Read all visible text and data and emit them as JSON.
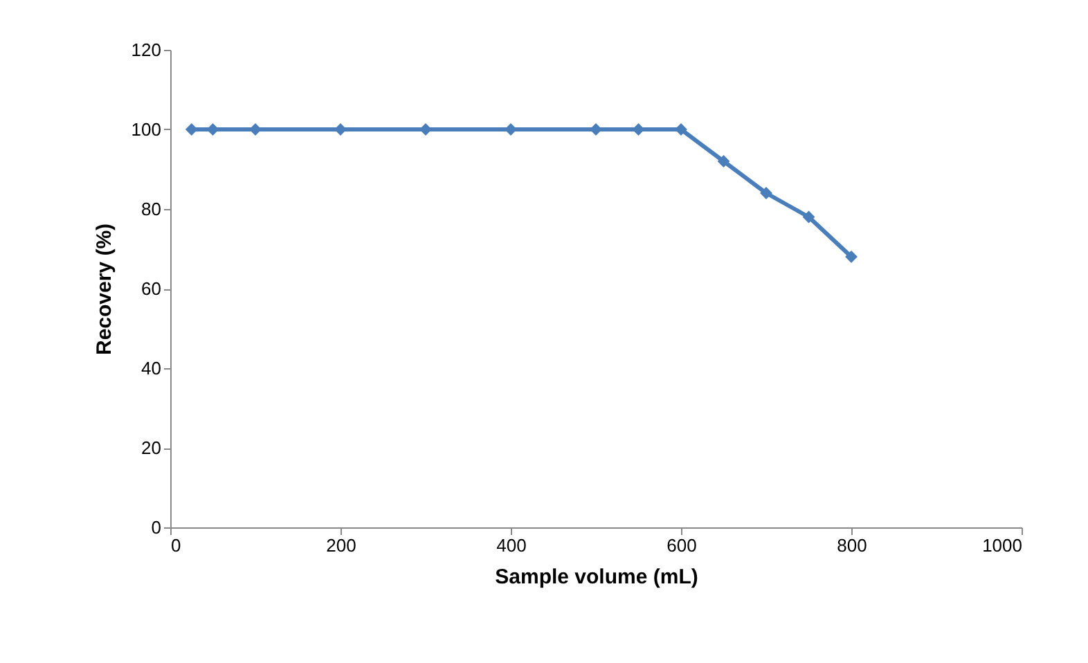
{
  "chart_data": {
    "type": "line",
    "xlabel": "Sample volume (mL)",
    "ylabel": "Recovery (%)",
    "x": [
      25,
      50,
      100,
      200,
      300,
      400,
      500,
      550,
      600,
      650,
      700,
      750,
      800
    ],
    "series": [
      {
        "color": "#4a7ebb",
        "values": [
          100,
          100,
          100,
          100,
          100,
          100,
          100,
          100,
          100,
          92,
          84,
          78,
          68
        ]
      }
    ],
    "xlim": [
      0,
      1000
    ],
    "xticks": [
      0,
      200,
      400,
      600,
      800,
      1000
    ],
    "ylim": [
      0,
      120
    ],
    "yticks": [
      0,
      20,
      40,
      60,
      80,
      100,
      120
    ],
    "grid": false,
    "marker": "diamond",
    "line_style": "solid"
  }
}
